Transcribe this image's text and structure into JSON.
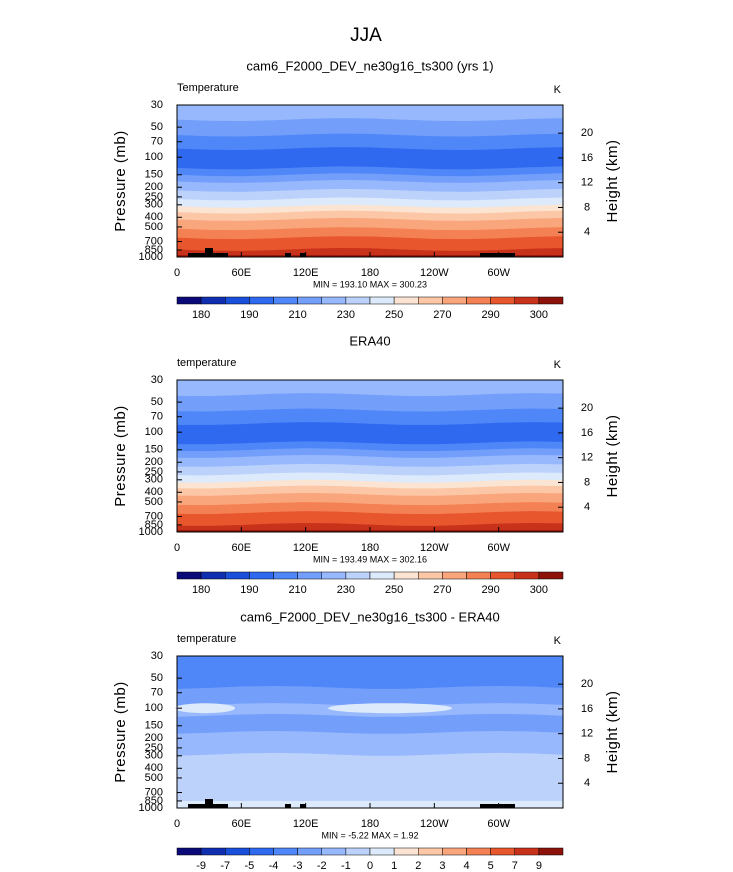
{
  "title": "JJA",
  "chart_data": [
    {
      "type": "contour",
      "title": "cam6_F2000_DEV_ne30g16_ts300 (yrs 1)",
      "left_label": "Temperature",
      "right_label": "K",
      "y_label": "Pressure (mb)",
      "y2_label": "Height (km)",
      "log_scale": true,
      "ylim": [
        30,
        1000
      ],
      "yticks": [
        30,
        50,
        70,
        100,
        150,
        200,
        250,
        300,
        400,
        500,
        700,
        850,
        1000
      ],
      "y2ticks": [
        20,
        16,
        12,
        8,
        4
      ],
      "xlim": [
        0,
        360
      ],
      "xticks": [
        0,
        {
          "value": 60,
          "label": "60E"
        },
        {
          "value": 120,
          "label": "120E"
        },
        180,
        {
          "value": 240,
          "label": "120W"
        },
        {
          "value": 300,
          "label": "60W"
        }
      ],
      "stats": "MIN = 193.10   MAX = 300.23",
      "colorbar": {
        "colors": [
          "#0a0a78",
          "#0f2fb0",
          "#1a4fdc",
          "#2f69f0",
          "#5087f8",
          "#739ffb",
          "#97b8fc",
          "#bcd2fb",
          "#ddeafc",
          "#fbe4d2",
          "#fcc7a6",
          "#faa67d",
          "#f48154",
          "#e8562d",
          "#c9321a",
          "#8c120a"
        ],
        "labels": [
          180,
          190,
          210,
          230,
          250,
          270,
          290,
          300
        ]
      }
    },
    {
      "type": "contour",
      "title": "ERA40",
      "left_label": "temperature",
      "right_label": "K",
      "y_label": "Pressure (mb)",
      "y2_label": "Height (km)",
      "log_scale": true,
      "ylim": [
        30,
        1000
      ],
      "yticks": [
        30,
        50,
        70,
        100,
        150,
        200,
        250,
        300,
        400,
        500,
        700,
        850,
        1000
      ],
      "y2ticks": [
        20,
        16,
        12,
        8,
        4
      ],
      "xlim": [
        0,
        360
      ],
      "xticks": [
        0,
        {
          "value": 60,
          "label": "60E"
        },
        {
          "value": 120,
          "label": "120E"
        },
        180,
        {
          "value": 240,
          "label": "120W"
        },
        {
          "value": 300,
          "label": "60W"
        }
      ],
      "stats": "MIN = 193.49   MAX = 302.16",
      "colorbar": {
        "colors": [
          "#0a0a78",
          "#0f2fb0",
          "#1a4fdc",
          "#2f69f0",
          "#5087f8",
          "#739ffb",
          "#97b8fc",
          "#bcd2fb",
          "#ddeafc",
          "#fbe4d2",
          "#fcc7a6",
          "#faa67d",
          "#f48154",
          "#e8562d",
          "#c9321a",
          "#8c120a"
        ],
        "labels": [
          180,
          190,
          210,
          230,
          250,
          270,
          290,
          300
        ]
      }
    },
    {
      "type": "contour",
      "title": "cam6_F2000_DEV_ne30g16_ts300 - ERA40",
      "left_label": "temperature",
      "right_label": "K",
      "y_label": "Pressure (mb)",
      "y2_label": "Height (km)",
      "log_scale": true,
      "ylim": [
        30,
        1000
      ],
      "yticks": [
        30,
        50,
        70,
        100,
        150,
        200,
        250,
        300,
        400,
        500,
        700,
        850,
        1000
      ],
      "y2ticks": [
        20,
        16,
        12,
        8,
        4
      ],
      "xlim": [
        0,
        360
      ],
      "xticks": [
        0,
        {
          "value": 60,
          "label": "60E"
        },
        {
          "value": 120,
          "label": "120E"
        },
        180,
        {
          "value": 240,
          "label": "120W"
        },
        {
          "value": 300,
          "label": "60W"
        }
      ],
      "stats": "MIN =   -5.22   MAX =    1.92",
      "colorbar": {
        "colors": [
          "#0a0a78",
          "#0f2fb0",
          "#1a4fdc",
          "#2f69f0",
          "#5087f8",
          "#739ffb",
          "#97b8fc",
          "#bcd2fb",
          "#ddeafc",
          "#fbe4d2",
          "#fcc7a6",
          "#faa67d",
          "#f48154",
          "#e8562d",
          "#c9321a",
          "#8c120a"
        ],
        "labels": [
          -9,
          -7,
          -5,
          -4,
          -3,
          -2,
          -1,
          0,
          1,
          2,
          3,
          4,
          5,
          7,
          9
        ]
      }
    }
  ]
}
